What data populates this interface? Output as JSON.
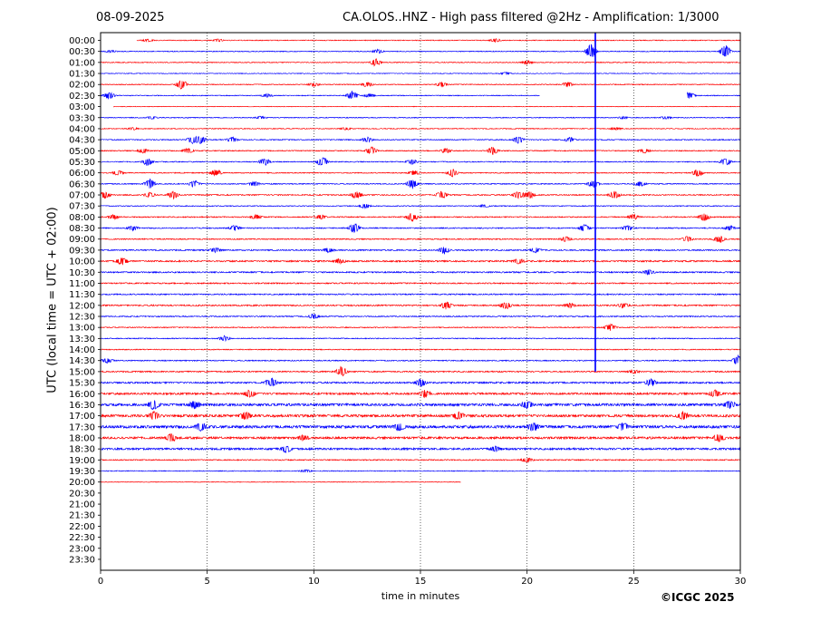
{
  "header": {
    "date": "08-09-2025",
    "title": "CA.OLOS..HNZ - High pass filtered @2Hz - Amplification: 1/3000"
  },
  "copyright": "©ICGC 2025",
  "colors": {
    "odd_trace": "#ff0000",
    "even_trace": "#0000ff",
    "event_marker": "#0000ff",
    "grid": "#000000"
  },
  "chart_data": {
    "type": "line",
    "title": "CA.OLOS..HNZ - High pass filtered @2Hz - Amplification: 1/3000",
    "xlabel": "time in minutes",
    "ylabel": "UTC (local time = UTC + 02:00)",
    "xlim": [
      0,
      30
    ],
    "x_ticks": [
      0,
      5,
      10,
      15,
      20,
      25,
      30
    ],
    "vertical_grid": [
      5,
      10,
      15,
      20,
      25
    ],
    "grid": true,
    "rows": [
      "00:00",
      "00:30",
      "01:00",
      "01:30",
      "02:00",
      "02:30",
      "03:00",
      "03:30",
      "04:00",
      "04:30",
      "05:00",
      "05:30",
      "06:00",
      "06:30",
      "07:00",
      "07:30",
      "08:00",
      "08:30",
      "09:00",
      "09:30",
      "10:00",
      "10:30",
      "11:00",
      "11:30",
      "12:00",
      "12:30",
      "13:00",
      "13:30",
      "14:00",
      "14:30",
      "15:00",
      "15:30",
      "16:00",
      "16:30",
      "17:00",
      "17:30",
      "18:00",
      "18:30",
      "19:00",
      "19:30",
      "20:00",
      "20:30",
      "21:00",
      "21:30",
      "22:00",
      "22:30",
      "23:00",
      "23:30"
    ],
    "traces": [
      {
        "row": "00:00",
        "start": 1.7,
        "end": 30,
        "noise": 0.3,
        "bursts": [
          [
            2.2,
            1
          ],
          [
            5.5,
            1
          ],
          [
            18.5,
            1.5
          ]
        ]
      },
      {
        "row": "00:30",
        "start": 0,
        "end": 30,
        "noise": 0.3,
        "bursts": [
          [
            0.5,
            1
          ],
          [
            13,
            1.5
          ],
          [
            23,
            6
          ],
          [
            29.3,
            5
          ]
        ]
      },
      {
        "row": "01:00",
        "start": 0,
        "end": 30,
        "noise": 0.3,
        "bursts": [
          [
            12.9,
            3
          ],
          [
            20,
            1.5
          ]
        ]
      },
      {
        "row": "01:30",
        "start": 0,
        "end": 30,
        "noise": 0.25,
        "bursts": [
          [
            19,
            1
          ]
        ]
      },
      {
        "row": "02:00",
        "start": 0,
        "end": 30,
        "noise": 0.3,
        "bursts": [
          [
            3.8,
            4
          ],
          [
            10,
            1.5
          ],
          [
            12.5,
            2
          ],
          [
            16,
            2
          ],
          [
            21.9,
            2
          ]
        ]
      },
      {
        "row": "02:30",
        "start": 0,
        "end": 20.6,
        "noise": 0.3,
        "bursts": [
          [
            0.4,
            3
          ],
          [
            7.8,
            1.5
          ],
          [
            11.8,
            4
          ],
          [
            12.6,
            1.5
          ]
        ]
      },
      {
        "row": "02:30b",
        "start": 27.5,
        "end": 30,
        "noise": 0.3,
        "bursts": [
          [
            27.6,
            3
          ]
        ]
      },
      {
        "row": "03:00",
        "start": 0.6,
        "end": 30,
        "noise": 0.2,
        "bursts": []
      },
      {
        "row": "03:30",
        "start": 0,
        "end": 30,
        "noise": 0.3,
        "bursts": [
          [
            2.4,
            1
          ],
          [
            7.5,
            1
          ],
          [
            24.5,
            1
          ],
          [
            26.5,
            1
          ]
        ]
      },
      {
        "row": "04:00",
        "start": 0,
        "end": 30,
        "noise": 0.3,
        "bursts": [
          [
            1.5,
            1
          ],
          [
            11.5,
            1
          ],
          [
            24.2,
            1
          ]
        ]
      },
      {
        "row": "04:30",
        "start": 0,
        "end": 30,
        "noise": 0.35,
        "bursts": [
          [
            4.3,
            3
          ],
          [
            4.7,
            3
          ],
          [
            6.2,
            2
          ],
          [
            12.5,
            2
          ],
          [
            19.6,
            3
          ],
          [
            22,
            2
          ]
        ]
      },
      {
        "row": "05:00",
        "start": 0,
        "end": 30,
        "noise": 0.35,
        "bursts": [
          [
            2,
            2
          ],
          [
            4.1,
            2
          ],
          [
            12.7,
            3
          ],
          [
            16.2,
            2
          ],
          [
            18.4,
            3
          ],
          [
            25.5,
            2
          ]
        ]
      },
      {
        "row": "05:30",
        "start": 0,
        "end": 30,
        "noise": 0.35,
        "bursts": [
          [
            2.2,
            3
          ],
          [
            7.7,
            3
          ],
          [
            10.4,
            4
          ],
          [
            14.6,
            2
          ],
          [
            29.3,
            3
          ]
        ]
      },
      {
        "row": "06:00",
        "start": 0,
        "end": 30,
        "noise": 0.35,
        "bursts": [
          [
            0.8,
            2
          ],
          [
            5.4,
            3
          ],
          [
            14.7,
            2
          ],
          [
            16.5,
            3
          ],
          [
            28,
            3
          ]
        ]
      },
      {
        "row": "06:30",
        "start": 0,
        "end": 30,
        "noise": 0.35,
        "bursts": [
          [
            2.3,
            4
          ],
          [
            4.4,
            3
          ],
          [
            7.2,
            2
          ],
          [
            14.6,
            4
          ],
          [
            23.1,
            3
          ],
          [
            25.3,
            2
          ]
        ]
      },
      {
        "row": "07:00",
        "start": 0,
        "end": 30,
        "noise": 0.4,
        "bursts": [
          [
            0.2,
            3
          ],
          [
            2.3,
            2
          ],
          [
            3.4,
            3
          ],
          [
            12,
            3
          ],
          [
            16,
            3
          ],
          [
            19.6,
            3
          ],
          [
            20.1,
            3
          ],
          [
            24.1,
            3
          ]
        ]
      },
      {
        "row": "07:30",
        "start": 0,
        "end": 30,
        "noise": 0.3,
        "bursts": [
          [
            12.4,
            2
          ],
          [
            18,
            1
          ]
        ]
      },
      {
        "row": "08:00",
        "start": 0,
        "end": 30,
        "noise": 0.4,
        "bursts": [
          [
            0.6,
            2
          ],
          [
            7.3,
            2
          ],
          [
            10.3,
            2
          ],
          [
            14.6,
            4
          ],
          [
            25,
            2
          ],
          [
            28.3,
            3
          ]
        ]
      },
      {
        "row": "08:30",
        "start": 0,
        "end": 30,
        "noise": 0.4,
        "bursts": [
          [
            1.5,
            2
          ],
          [
            6.3,
            2
          ],
          [
            11.9,
            4
          ],
          [
            22.7,
            3
          ],
          [
            24.7,
            2
          ],
          [
            29.5,
            2
          ]
        ]
      },
      {
        "row": "09:00",
        "start": 0,
        "end": 30,
        "noise": 0.4,
        "bursts": [
          [
            21.8,
            2
          ],
          [
            27.5,
            2
          ],
          [
            29,
            3
          ]
        ]
      },
      {
        "row": "09:30",
        "start": 0,
        "end": 30,
        "noise": 0.45,
        "bursts": [
          [
            5.4,
            2
          ],
          [
            10.7,
            2
          ],
          [
            16.1,
            3
          ],
          [
            20.4,
            2
          ]
        ]
      },
      {
        "row": "10:00",
        "start": 0,
        "end": 30,
        "noise": 0.55,
        "bursts": [
          [
            1,
            3
          ],
          [
            11.2,
            2
          ],
          [
            19.6,
            2
          ]
        ]
      },
      {
        "row": "10:30",
        "start": 0,
        "end": 30,
        "noise": 0.5,
        "bursts": [
          [
            25.7,
            2
          ]
        ]
      },
      {
        "row": "11:00",
        "start": 0,
        "end": 30,
        "noise": 0.45,
        "bursts": []
      },
      {
        "row": "11:30",
        "start": 0,
        "end": 30,
        "noise": 0.45,
        "bursts": []
      },
      {
        "row": "12:00",
        "start": 0,
        "end": 30,
        "noise": 0.5,
        "bursts": [
          [
            16.2,
            3
          ],
          [
            19,
            3
          ],
          [
            22,
            2
          ],
          [
            24.5,
            2
          ]
        ]
      },
      {
        "row": "12:30",
        "start": 0,
        "end": 30,
        "noise": 0.4,
        "bursts": [
          [
            10,
            2
          ]
        ]
      },
      {
        "row": "13:00",
        "start": 0,
        "end": 30,
        "noise": 0.35,
        "bursts": [
          [
            23.9,
            3
          ]
        ]
      },
      {
        "row": "13:30",
        "start": 0,
        "end": 30,
        "noise": 0.35,
        "bursts": [
          [
            5.8,
            2
          ]
        ]
      },
      {
        "row": "14:00",
        "start": 0,
        "end": 30,
        "noise": 0.35,
        "bursts": []
      },
      {
        "row": "14:30",
        "start": 0,
        "end": 30,
        "noise": 0.4,
        "bursts": [
          [
            0.3,
            2
          ],
          [
            29.9,
            4
          ]
        ]
      },
      {
        "row": "15:00",
        "start": 0,
        "end": 30,
        "noise": 0.45,
        "bursts": [
          [
            11.3,
            4
          ],
          [
            25,
            1.5
          ]
        ]
      },
      {
        "row": "15:30",
        "start": 0,
        "end": 30,
        "noise": 0.6,
        "bursts": [
          [
            8,
            4
          ],
          [
            15,
            3
          ],
          [
            25.8,
            3
          ]
        ]
      },
      {
        "row": "16:00",
        "start": 0,
        "end": 30,
        "noise": 0.7,
        "bursts": [
          [
            7,
            3
          ],
          [
            15.2,
            3
          ],
          [
            28.8,
            3
          ]
        ]
      },
      {
        "row": "16:30",
        "start": 0,
        "end": 30,
        "noise": 0.9,
        "bursts": [
          [
            2.5,
            4
          ],
          [
            4.4,
            3
          ],
          [
            20,
            3
          ],
          [
            29.5,
            3
          ]
        ]
      },
      {
        "row": "17:00",
        "start": 0,
        "end": 30,
        "noise": 0.9,
        "bursts": [
          [
            2.5,
            3
          ],
          [
            6.8,
            3
          ],
          [
            16.8,
            3
          ],
          [
            27.3,
            3
          ]
        ]
      },
      {
        "row": "17:30",
        "start": 0,
        "end": 30,
        "noise": 1.0,
        "bursts": [
          [
            4.7,
            3
          ],
          [
            14,
            3
          ],
          [
            20.3,
            3
          ],
          [
            24.5,
            3
          ]
        ]
      },
      {
        "row": "18:00",
        "start": 0,
        "end": 30,
        "noise": 0.8,
        "bursts": [
          [
            3.3,
            3
          ],
          [
            9.5,
            2
          ],
          [
            29,
            3
          ]
        ]
      },
      {
        "row": "18:30",
        "start": 0,
        "end": 30,
        "noise": 0.7,
        "bursts": [
          [
            8.7,
            3
          ],
          [
            18.5,
            2
          ]
        ]
      },
      {
        "row": "19:00",
        "start": 0,
        "end": 30,
        "noise": 0.4,
        "bursts": [
          [
            20,
            2
          ]
        ]
      },
      {
        "row": "19:30",
        "start": 0,
        "end": 30,
        "noise": 0.3,
        "bursts": [
          [
            9.6,
            1
          ]
        ]
      },
      {
        "row": "20:00",
        "start": 0,
        "end": 16.9,
        "noise": 0.2,
        "bursts": []
      }
    ],
    "event_marker": {
      "x": 23.2,
      "from_row": "00:00",
      "to_row": "15:00"
    }
  }
}
